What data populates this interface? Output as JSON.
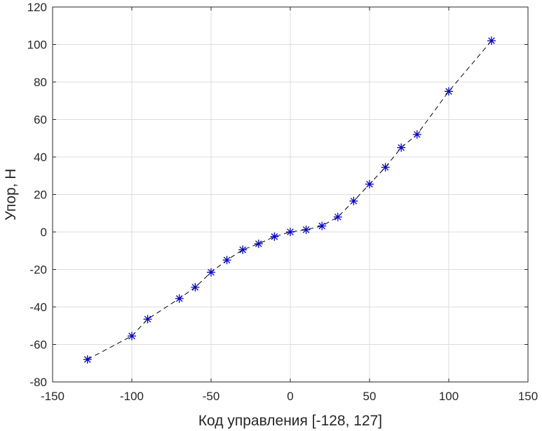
{
  "chart_data": {
    "type": "line",
    "title": "",
    "xlabel": "Код управления [-128, 127]",
    "ylabel": "Упор, Н",
    "xlim": [
      -150,
      150
    ],
    "ylim": [
      -80,
      120
    ],
    "xticks": [
      -150,
      -100,
      -50,
      0,
      50,
      100,
      150
    ],
    "yticks": [
      -80,
      -60,
      -40,
      -20,
      0,
      20,
      40,
      60,
      80,
      100,
      120
    ],
    "grid": true,
    "legend": "none",
    "series": [
      {
        "line_style": "dashed",
        "line_color": "#000000",
        "marker": "asterisk",
        "marker_color": "#0000cc",
        "x": [
          -128,
          -100,
          -90,
          -70,
          -60,
          -50,
          -40,
          -30,
          -20,
          -10,
          0,
          10,
          20,
          30,
          40,
          50,
          60,
          70,
          80,
          100,
          127
        ],
        "y": [
          -68,
          -55.5,
          -46.5,
          -35.5,
          -29.5,
          -21.5,
          -15,
          -9.5,
          -6.3,
          -2.5,
          0,
          1.2,
          3.2,
          8,
          16.5,
          25.5,
          34.5,
          45,
          52,
          75,
          102
        ]
      }
    ]
  }
}
